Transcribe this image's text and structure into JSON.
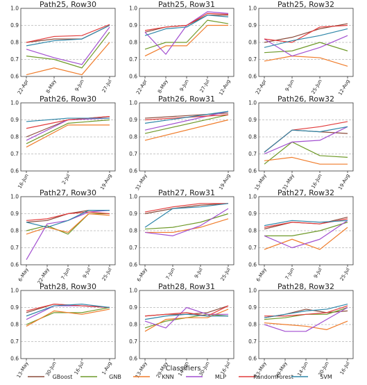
{
  "series_names": [
    "GBoost",
    "GNB",
    "KNN",
    "MLP",
    "RandomForest",
    "SVM"
  ],
  "colors": {
    "GBoost": "#8b4a3a",
    "GNB": "#6f9a2a",
    "KNN": "#f07c2a",
    "MLP": "#a24fd0",
    "RandomForest": "#e23b3b",
    "SVM": "#2e86a8"
  },
  "legend": {
    "title": "Classifiers",
    "placement": "bottom"
  },
  "chart_data": [
    {
      "type": "line",
      "title": "Path25, Row30",
      "categories": [
        "22-Apr",
        "8-May",
        "9-Jun",
        "27-Jul"
      ],
      "ylim": [
        0.6,
        1.0
      ],
      "yticks": [
        "0.6",
        "0.7",
        "0.8",
        "0.9",
        "1.0"
      ],
      "grid": "y-dashed",
      "series": [
        {
          "name": "GBoost",
          "values": [
            0.8,
            0.82,
            0.82,
            0.9
          ]
        },
        {
          "name": "GNB",
          "values": [
            0.72,
            0.7,
            0.65,
            0.86
          ]
        },
        {
          "name": "KNN",
          "values": [
            0.61,
            0.65,
            0.61,
            0.8
          ]
        },
        {
          "name": "MLP",
          "values": [
            0.76,
            0.71,
            0.67,
            0.89
          ]
        },
        {
          "name": "RandomForest",
          "values": [
            0.8,
            0.835,
            0.84,
            0.905
          ]
        },
        {
          "name": "SVM",
          "values": [
            0.78,
            0.81,
            0.82,
            0.9
          ]
        }
      ]
    },
    {
      "type": "line",
      "title": "Path25, Row31",
      "categories": [
        "22-Apr",
        "8-May",
        "9-Jun",
        "27-Jul",
        "12-Aug"
      ],
      "ylim": [
        0.6,
        1.0
      ],
      "yticks": [
        "0.6",
        "0.7",
        "0.8",
        "0.9",
        "1.0"
      ],
      "grid": "y-dashed",
      "series": [
        {
          "name": "GBoost",
          "values": [
            0.86,
            0.89,
            0.9,
            0.96,
            0.96
          ]
        },
        {
          "name": "GNB",
          "values": [
            0.76,
            0.8,
            0.8,
            0.93,
            0.91
          ]
        },
        {
          "name": "KNN",
          "values": [
            0.72,
            0.78,
            0.78,
            0.9,
            0.9
          ]
        },
        {
          "name": "MLP",
          "values": [
            0.86,
            0.73,
            0.9,
            0.98,
            0.97
          ]
        },
        {
          "name": "RandomForest",
          "values": [
            0.87,
            0.89,
            0.9,
            0.97,
            0.965
          ]
        },
        {
          "name": "SVM",
          "values": [
            0.84,
            0.88,
            0.89,
            0.96,
            0.95
          ]
        }
      ]
    },
    {
      "type": "line",
      "title": "Path25, Row32",
      "categories": [
        "22-Apr",
        "9-Jun",
        "25-Jun",
        "12-Aug"
      ],
      "ylim": [
        0.6,
        1.0
      ],
      "yticks": [
        "0.6",
        "0.7",
        "0.8",
        "0.9",
        "1.0"
      ],
      "grid": "y-dashed",
      "series": [
        {
          "name": "GBoost",
          "values": [
            0.8,
            0.83,
            0.88,
            0.91
          ]
        },
        {
          "name": "GNB",
          "values": [
            0.74,
            0.75,
            0.8,
            0.75
          ]
        },
        {
          "name": "KNN",
          "values": [
            0.69,
            0.72,
            0.71,
            0.66
          ]
        },
        {
          "name": "MLP",
          "values": [
            0.82,
            0.72,
            0.77,
            0.84
          ]
        },
        {
          "name": "RandomForest",
          "values": [
            0.82,
            0.8,
            0.89,
            0.9
          ]
        },
        {
          "name": "SVM",
          "values": [
            0.77,
            0.81,
            0.84,
            0.88
          ]
        }
      ]
    },
    {
      "type": "line",
      "title": "Path26, Row30",
      "categories": [
        "16-Jun",
        "2-Jul",
        "19-Aug"
      ],
      "ylim": [
        0.6,
        1.0
      ],
      "yticks": [
        "0.6",
        "0.7",
        "0.8",
        "0.9",
        "1.0"
      ],
      "grid": "y-dashed",
      "series": [
        {
          "name": "GBoost",
          "values": [
            0.8,
            0.9,
            0.92
          ]
        },
        {
          "name": "GNB",
          "values": [
            0.76,
            0.88,
            0.9
          ]
        },
        {
          "name": "KNN",
          "values": [
            0.74,
            0.87,
            0.87
          ]
        },
        {
          "name": "MLP",
          "values": [
            0.78,
            0.9,
            0.91
          ]
        },
        {
          "name": "RandomForest",
          "values": [
            0.85,
            0.9,
            0.92
          ]
        },
        {
          "name": "SVM",
          "values": [
            0.89,
            0.91,
            0.91
          ]
        }
      ]
    },
    {
      "type": "line",
      "title": "Path26, Row31",
      "categories": [
        "31-May",
        "19-Aug"
      ],
      "ylim": [
        0.6,
        1.0
      ],
      "yticks": [
        "0.6",
        "0.7",
        "0.8",
        "0.9",
        "1.0"
      ],
      "grid": "y-dashed",
      "series": [
        {
          "name": "GBoost",
          "values": [
            0.91,
            0.94
          ]
        },
        {
          "name": "GNB",
          "values": [
            0.82,
            0.93
          ]
        },
        {
          "name": "KNN",
          "values": [
            0.78,
            0.9
          ]
        },
        {
          "name": "MLP",
          "values": [
            0.84,
            0.95
          ]
        },
        {
          "name": "RandomForest",
          "values": [
            0.9,
            0.93
          ]
        },
        {
          "name": "SVM",
          "values": [
            0.88,
            0.95
          ]
        }
      ]
    },
    {
      "type": "line",
      "title": "Path26, Row32",
      "categories": [
        "15-May",
        "31-May",
        "16-Jun",
        "19-Aug"
      ],
      "ylim": [
        0.6,
        1.0
      ],
      "yticks": [
        "0.6",
        "0.7",
        "0.8",
        "0.9",
        "1.0"
      ],
      "grid": "y-dashed",
      "series": [
        {
          "name": "GBoost",
          "values": [
            0.71,
            0.84,
            0.83,
            0.82
          ]
        },
        {
          "name": "GNB",
          "values": [
            0.64,
            0.77,
            0.69,
            0.68
          ]
        },
        {
          "name": "KNN",
          "values": [
            0.66,
            0.68,
            0.64,
            0.64
          ]
        },
        {
          "name": "MLP",
          "values": [
            0.7,
            0.77,
            0.78,
            0.86
          ]
        },
        {
          "name": "RandomForest",
          "values": [
            0.71,
            0.84,
            0.86,
            0.89
          ]
        },
        {
          "name": "SVM",
          "values": [
            0.71,
            0.84,
            0.83,
            0.86
          ]
        }
      ]
    },
    {
      "type": "line",
      "title": "Path27, Row30",
      "categories": [
        "6-May",
        "22-May",
        "7-Jun",
        "9-Jul",
        "25-Jul"
      ],
      "ylim": [
        0.6,
        1.0
      ],
      "yticks": [
        "0.6",
        "0.7",
        "0.8",
        "0.9",
        "1.0"
      ],
      "grid": "y-dashed",
      "series": [
        {
          "name": "GBoost",
          "values": [
            0.85,
            0.86,
            0.9,
            0.92,
            0.92
          ]
        },
        {
          "name": "GNB",
          "values": [
            0.8,
            0.83,
            0.78,
            0.9,
            0.9
          ]
        },
        {
          "name": "KNN",
          "values": [
            0.78,
            0.82,
            0.79,
            0.9,
            0.89
          ]
        },
        {
          "name": "MLP",
          "values": [
            0.63,
            0.84,
            0.86,
            0.91,
            0.92
          ]
        },
        {
          "name": "RandomForest",
          "values": [
            0.86,
            0.87,
            0.9,
            0.91,
            0.9
          ]
        },
        {
          "name": "SVM",
          "values": [
            0.85,
            0.82,
            0.86,
            0.92,
            0.92
          ]
        }
      ]
    },
    {
      "type": "line",
      "title": "Path27, Row31",
      "categories": [
        "6-May",
        "7-Jun",
        "9-Jul",
        "25-Jul"
      ],
      "ylim": [
        0.6,
        1.0
      ],
      "yticks": [
        "0.6",
        "0.7",
        "0.8",
        "0.9",
        "1.0"
      ],
      "grid": "y-dashed",
      "series": [
        {
          "name": "GBoost",
          "values": [
            0.9,
            0.93,
            0.95,
            0.96
          ]
        },
        {
          "name": "GNB",
          "values": [
            0.81,
            0.82,
            0.85,
            0.9
          ]
        },
        {
          "name": "KNN",
          "values": [
            0.79,
            0.79,
            0.82,
            0.87
          ]
        },
        {
          "name": "MLP",
          "values": [
            0.79,
            0.77,
            0.83,
            0.93
          ]
        },
        {
          "name": "RandomForest",
          "values": [
            0.91,
            0.94,
            0.96,
            0.96
          ]
        },
        {
          "name": "SVM",
          "values": [
            0.82,
            0.93,
            0.94,
            0.96
          ]
        }
      ]
    },
    {
      "type": "line",
      "title": "Path27, Row32",
      "categories": [
        "6-May",
        "7-Jun",
        "9-Jul",
        "25-Jul"
      ],
      "ylim": [
        0.6,
        1.0
      ],
      "yticks": [
        "0.6",
        "0.7",
        "0.8",
        "0.9",
        "1.0"
      ],
      "grid": "y-dashed",
      "series": [
        {
          "name": "GBoost",
          "values": [
            0.81,
            0.85,
            0.84,
            0.88
          ]
        },
        {
          "name": "GNB",
          "values": [
            0.77,
            0.77,
            0.8,
            0.85
          ]
        },
        {
          "name": "KNN",
          "values": [
            0.69,
            0.75,
            0.69,
            0.82
          ]
        },
        {
          "name": "MLP",
          "values": [
            0.77,
            0.7,
            0.75,
            0.86
          ]
        },
        {
          "name": "RandomForest",
          "values": [
            0.82,
            0.85,
            0.84,
            0.87
          ]
        },
        {
          "name": "SVM",
          "values": [
            0.83,
            0.86,
            0.85,
            0.86
          ]
        }
      ]
    },
    {
      "type": "line",
      "title": "Path28, Row30",
      "categories": [
        "13-May",
        "30-Jun",
        "16-Jul",
        "1-Aug"
      ],
      "ylim": [
        0.6,
        1.0
      ],
      "yticks": [
        "0.6",
        "0.7",
        "0.8",
        "0.9",
        "1.0"
      ],
      "grid": "y-dashed",
      "series": [
        {
          "name": "GBoost",
          "values": [
            0.87,
            0.92,
            0.91,
            0.9
          ]
        },
        {
          "name": "GNB",
          "values": [
            0.8,
            0.87,
            0.87,
            0.9
          ]
        },
        {
          "name": "KNN",
          "values": [
            0.79,
            0.88,
            0.86,
            0.89
          ]
        },
        {
          "name": "MLP",
          "values": [
            0.83,
            0.91,
            0.91,
            0.9
          ]
        },
        {
          "name": "RandomForest",
          "values": [
            0.88,
            0.92,
            0.91,
            0.9
          ]
        },
        {
          "name": "SVM",
          "values": [
            0.85,
            0.91,
            0.92,
            0.9
          ]
        }
      ]
    },
    {
      "type": "line",
      "title": "Path28, Row31",
      "categories": [
        "13-May",
        "29-May",
        "14-Jun",
        "30-Jun",
        "16-Jul"
      ],
      "ylim": [
        0.6,
        1.0
      ],
      "yticks": [
        "0.6",
        "0.7",
        "0.8",
        "0.9",
        "1.0"
      ],
      "grid": "y-dashed",
      "series": [
        {
          "name": "GBoost",
          "values": [
            0.85,
            0.86,
            0.86,
            0.87,
            0.91
          ]
        },
        {
          "name": "GNB",
          "values": [
            0.78,
            0.82,
            0.84,
            0.86,
            0.85
          ]
        },
        {
          "name": "KNN",
          "values": [
            0.76,
            0.83,
            0.84,
            0.84,
            0.89
          ]
        },
        {
          "name": "MLP",
          "values": [
            0.82,
            0.78,
            0.9,
            0.86,
            0.86
          ]
        },
        {
          "name": "RandomForest",
          "values": [
            0.85,
            0.86,
            0.87,
            0.85,
            0.91
          ]
        },
        {
          "name": "SVM",
          "values": [
            0.83,
            0.85,
            0.86,
            0.85,
            0.85
          ]
        }
      ]
    },
    {
      "type": "line",
      "title": "Path28, Row32",
      "categories": [
        "13-May",
        "29-May",
        "14-Jun",
        "30-Jun",
        "16-Jul"
      ],
      "ylim": [
        0.6,
        1.0
      ],
      "yticks": [
        "0.6",
        "0.7",
        "0.8",
        "0.9",
        "1.0"
      ],
      "grid": "y-dashed",
      "series": [
        {
          "name": "GBoost",
          "values": [
            0.84,
            0.86,
            0.89,
            0.87,
            0.88
          ]
        },
        {
          "name": "GNB",
          "values": [
            0.83,
            0.84,
            0.86,
            0.86,
            0.9
          ]
        },
        {
          "name": "KNN",
          "values": [
            0.81,
            0.8,
            0.79,
            0.77,
            0.82
          ]
        },
        {
          "name": "MLP",
          "values": [
            0.8,
            0.76,
            0.76,
            0.83,
            0.9
          ]
        },
        {
          "name": "RandomForest",
          "values": [
            0.85,
            0.85,
            0.86,
            0.87,
            0.91
          ]
        },
        {
          "name": "SVM",
          "values": [
            0.84,
            0.86,
            0.88,
            0.89,
            0.92
          ]
        }
      ]
    }
  ]
}
